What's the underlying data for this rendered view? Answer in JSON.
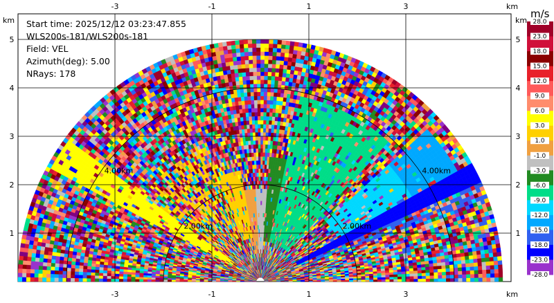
{
  "info": {
    "start_time": "Start time: 2025/12/12 03:23:47.855",
    "station": "WLS200s-181/WLS200s-181",
    "field": "Field: VEL",
    "azimuth": "Azimuth(deg): 5.00",
    "nrays": "NRays: 178"
  },
  "chart_data": {
    "type": "heatmap",
    "projection": "polar sector (RHI-like), 0-180 deg",
    "x_ticks": [
      "-3",
      "-1",
      "1",
      "3"
    ],
    "y_ticks": [
      "1",
      "2",
      "3",
      "4",
      "5"
    ],
    "x_unit": "km",
    "y_unit": "km",
    "xlim": [
      -5.4,
      5
    ],
    "ylim": [
      0,
      6
    ],
    "max_range_km": 5.0,
    "range_rings": [
      {
        "radius_km": 2.0,
        "label": "2.00km"
      },
      {
        "radius_km": 4.0,
        "label": "4.00km"
      }
    ],
    "colorbar": {
      "title": "m/s",
      "labels": [
        "28.0",
        "23.0",
        "18.0",
        "15.0",
        "12.0",
        "9.0",
        "6.0",
        "3.0",
        "1.0",
        "-1.0",
        "-3.0",
        "-6.0",
        "-9.0",
        "-12.0",
        "-15.0",
        "-18.0",
        "-23.0",
        "-28.0"
      ],
      "colors": [
        "#a00028",
        "#d0103a",
        "#8b0000",
        "#e8202a",
        "#ff5a5a",
        "#ff8c6c",
        "#ffff00",
        "#ffd000",
        "#f0a040",
        "#c0c0c0",
        "#228b22",
        "#00dd88",
        "#00d8ff",
        "#00a8ff",
        "#3060f0",
        "#0000ff",
        "#9932cc",
        "#800080"
      ]
    },
    "notable_features": [
      {
        "description": "negative velocity beam",
        "azimuth_deg": 27,
        "value": -15.0
      },
      {
        "description": "positive velocity band",
        "azimuth_deg": 148,
        "value": 6.0
      }
    ]
  }
}
